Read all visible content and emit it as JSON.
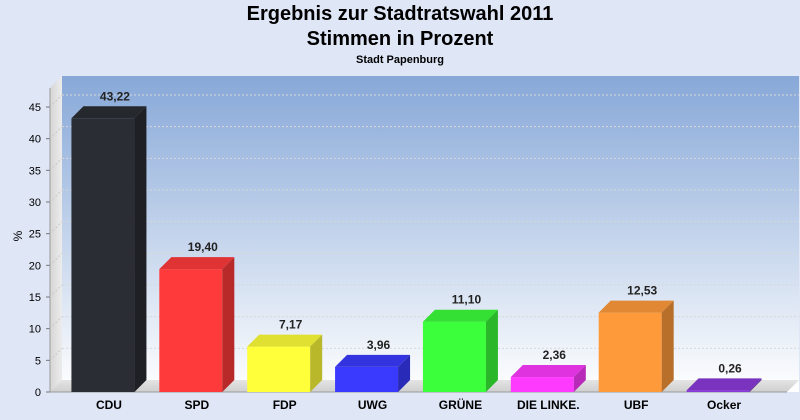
{
  "chart_data": {
    "type": "bar",
    "title_lines": [
      "Ergebnis zur Stadtratswahl 2011",
      "Stimmen in Prozent"
    ],
    "subtitle": "Stadt Papenburg",
    "xlabel": "",
    "ylabel": "%",
    "ylim": [
      0,
      45
    ],
    "yticks": [
      0,
      5,
      10,
      15,
      20,
      25,
      30,
      35,
      40,
      45
    ],
    "grid": true,
    "categories": [
      "CDU",
      "SPD",
      "FDP",
      "UWG",
      "GRÜNE",
      "DIE LINKE.",
      "UBF",
      "Ocker"
    ],
    "values": [
      43.22,
      19.4,
      7.17,
      3.96,
      11.1,
      2.36,
      12.53,
      0.26
    ],
    "value_labels": [
      "43,22",
      "19,40",
      "7,17",
      "3,96",
      "11,10",
      "2,36",
      "12,53",
      "0,26"
    ],
    "colors": [
      "#2a2d33",
      "#ff3a3a",
      "#ffff3a",
      "#3a3aff",
      "#3aff3a",
      "#ff3aff",
      "#ff9a3a",
      "#8a3ad8"
    ]
  }
}
